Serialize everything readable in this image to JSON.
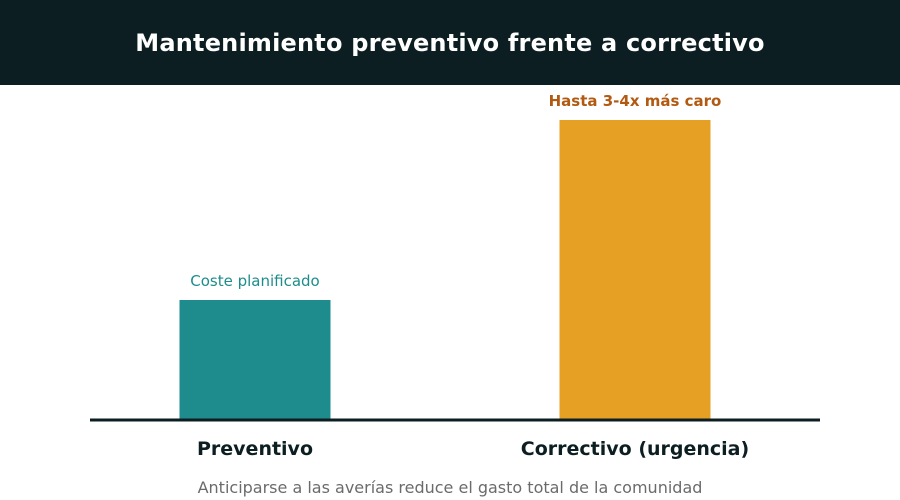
{
  "title": "Mantenimiento preventivo frente a correctivo",
  "caption": "Anticiparse a las averías reduce el gasto total de la comunidad",
  "colors": {
    "header_bg": "#0c1e22",
    "preventivo": "#1e8c8c",
    "correctivo": "#e6a023",
    "correctivo_label": "#b25a12",
    "axis": "#0c1e22"
  },
  "chart_data": {
    "type": "bar",
    "categories": [
      "Preventivo",
      "Correctivo (urgencia)"
    ],
    "values": [
      1,
      2.5
    ],
    "value_labels": [
      "Coste planificado",
      "Hasta 3-4x más caro"
    ],
    "bar_colors": [
      "#1e8c8c",
      "#e6a023"
    ],
    "label_colors": [
      "#1e8c8c",
      "#b25a12"
    ],
    "ylim": [
      0,
      2.5
    ],
    "grid": false,
    "xlabel": "",
    "ylabel": ""
  }
}
